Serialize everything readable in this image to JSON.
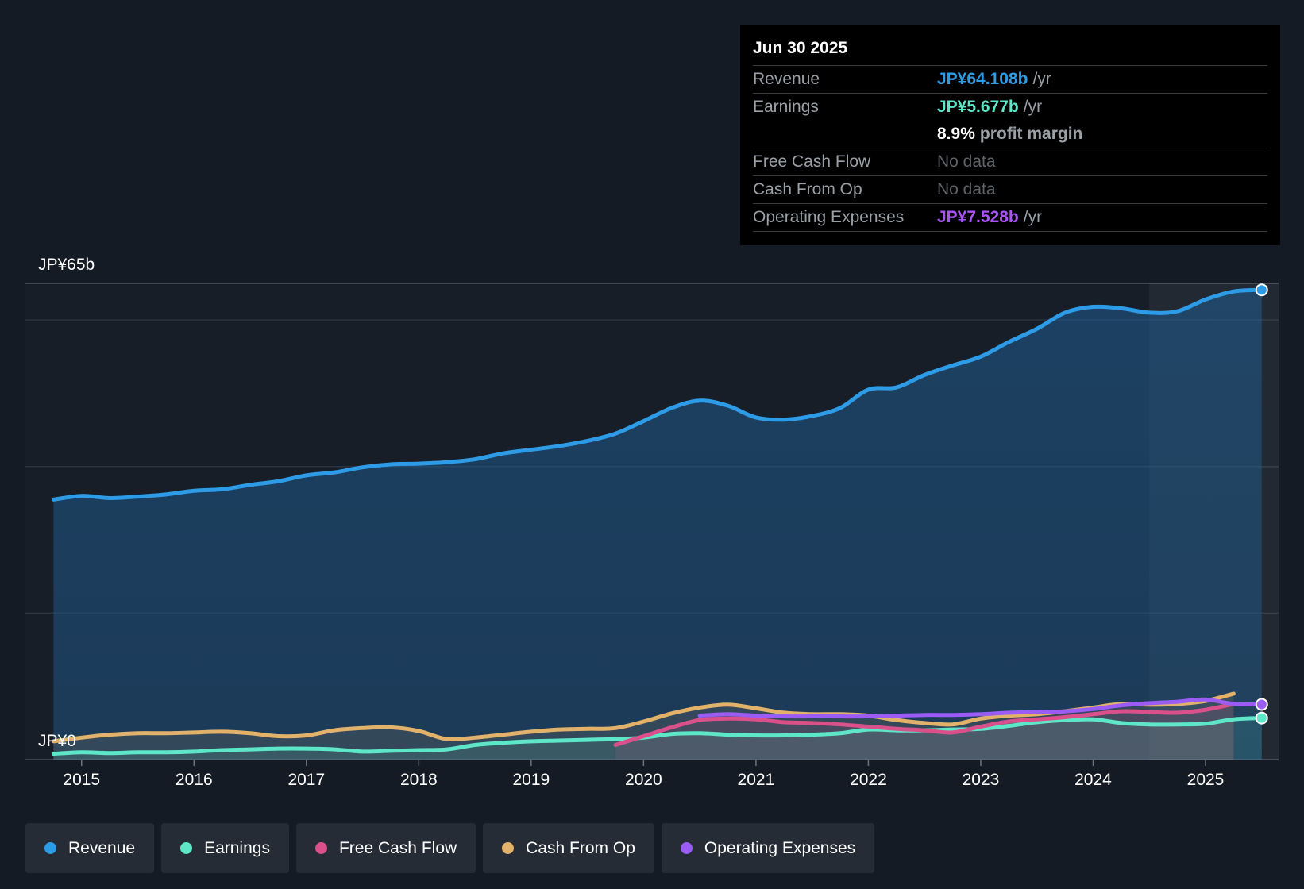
{
  "chart_data": {
    "type": "line",
    "ylim": [
      0,
      65
    ],
    "y_axis_labels": {
      "top": "JP¥65b",
      "bottom": "JP¥0"
    },
    "x_ticks": [
      "2015",
      "2016",
      "2017",
      "2018",
      "2019",
      "2020",
      "2021",
      "2022",
      "2023",
      "2024",
      "2025"
    ],
    "x_range": [
      2014.5,
      2025.65
    ],
    "forecast_start": 2024.5,
    "series": [
      {
        "name": "Revenue",
        "color": "#2d9be6",
        "fill": true,
        "points": [
          [
            2014.75,
            35.5
          ],
          [
            2015.0,
            36.0
          ],
          [
            2015.25,
            35.7
          ],
          [
            2015.5,
            35.9
          ],
          [
            2015.75,
            36.2
          ],
          [
            2016.0,
            36.7
          ],
          [
            2016.25,
            36.9
          ],
          [
            2016.5,
            37.5
          ],
          [
            2016.75,
            38.0
          ],
          [
            2017.0,
            38.8
          ],
          [
            2017.25,
            39.2
          ],
          [
            2017.5,
            39.9
          ],
          [
            2017.75,
            40.3
          ],
          [
            2018.0,
            40.4
          ],
          [
            2018.25,
            40.6
          ],
          [
            2018.5,
            41.0
          ],
          [
            2018.75,
            41.8
          ],
          [
            2019.0,
            42.3
          ],
          [
            2019.25,
            42.8
          ],
          [
            2019.5,
            43.5
          ],
          [
            2019.75,
            44.5
          ],
          [
            2020.0,
            46.2
          ],
          [
            2020.25,
            48.0
          ],
          [
            2020.5,
            49.0
          ],
          [
            2020.75,
            48.3
          ],
          [
            2021.0,
            46.7
          ],
          [
            2021.25,
            46.4
          ],
          [
            2021.5,
            46.9
          ],
          [
            2021.75,
            48.0
          ],
          [
            2022.0,
            50.5
          ],
          [
            2022.25,
            50.8
          ],
          [
            2022.5,
            52.5
          ],
          [
            2022.75,
            53.8
          ],
          [
            2023.0,
            55.0
          ],
          [
            2023.25,
            57.0
          ],
          [
            2023.5,
            58.8
          ],
          [
            2023.75,
            61.0
          ],
          [
            2024.0,
            61.8
          ],
          [
            2024.25,
            61.6
          ],
          [
            2024.5,
            61.0
          ],
          [
            2024.75,
            61.2
          ],
          [
            2025.0,
            62.8
          ],
          [
            2025.25,
            63.9
          ],
          [
            2025.5,
            64.108
          ]
        ]
      },
      {
        "name": "Earnings",
        "color": "#5de6c8",
        "fill": true,
        "points": [
          [
            2014.75,
            0.8
          ],
          [
            2015.0,
            1.0
          ],
          [
            2015.25,
            0.9
          ],
          [
            2015.5,
            1.0
          ],
          [
            2015.75,
            1.0
          ],
          [
            2016.0,
            1.1
          ],
          [
            2016.25,
            1.3
          ],
          [
            2016.5,
            1.4
          ],
          [
            2016.75,
            1.5
          ],
          [
            2017.0,
            1.5
          ],
          [
            2017.25,
            1.4
          ],
          [
            2017.5,
            1.1
          ],
          [
            2017.75,
            1.2
          ],
          [
            2018.0,
            1.3
          ],
          [
            2018.25,
            1.4
          ],
          [
            2018.5,
            2.0
          ],
          [
            2018.75,
            2.3
          ],
          [
            2019.0,
            2.5
          ],
          [
            2019.25,
            2.6
          ],
          [
            2019.5,
            2.7
          ],
          [
            2019.75,
            2.8
          ],
          [
            2020.0,
            3.0
          ],
          [
            2020.25,
            3.5
          ],
          [
            2020.5,
            3.6
          ],
          [
            2020.75,
            3.4
          ],
          [
            2021.0,
            3.3
          ],
          [
            2021.25,
            3.3
          ],
          [
            2021.5,
            3.4
          ],
          [
            2021.75,
            3.6
          ],
          [
            2022.0,
            4.1
          ],
          [
            2022.25,
            4.0
          ],
          [
            2022.5,
            4.0
          ],
          [
            2022.75,
            4.1
          ],
          [
            2023.0,
            4.2
          ],
          [
            2023.25,
            4.6
          ],
          [
            2023.5,
            5.1
          ],
          [
            2023.75,
            5.4
          ],
          [
            2024.0,
            5.5
          ],
          [
            2024.25,
            5.0
          ],
          [
            2024.5,
            4.8
          ],
          [
            2024.75,
            4.8
          ],
          [
            2025.0,
            4.9
          ],
          [
            2025.25,
            5.5
          ],
          [
            2025.5,
            5.677
          ]
        ]
      },
      {
        "name": "Free Cash Flow",
        "color": "#d9508a",
        "fill": true,
        "points": [
          [
            2019.75,
            2.0
          ],
          [
            2020.0,
            3.2
          ],
          [
            2020.25,
            4.4
          ],
          [
            2020.5,
            5.4
          ],
          [
            2020.75,
            5.6
          ],
          [
            2021.0,
            5.5
          ],
          [
            2021.25,
            5.1
          ],
          [
            2021.5,
            5.0
          ],
          [
            2021.75,
            4.8
          ],
          [
            2022.0,
            4.5
          ],
          [
            2022.25,
            4.2
          ],
          [
            2022.5,
            4.0
          ],
          [
            2022.75,
            3.7
          ],
          [
            2023.0,
            4.5
          ],
          [
            2023.25,
            5.2
          ],
          [
            2023.5,
            5.5
          ],
          [
            2023.75,
            5.8
          ],
          [
            2024.0,
            6.2
          ],
          [
            2024.25,
            6.6
          ],
          [
            2024.5,
            6.5
          ],
          [
            2024.75,
            6.4
          ],
          [
            2025.0,
            6.8
          ],
          [
            2025.25,
            7.6
          ]
        ]
      },
      {
        "name": "Cash From Op",
        "color": "#e3b26a",
        "fill": true,
        "points": [
          [
            2014.75,
            2.5
          ],
          [
            2015.0,
            3.0
          ],
          [
            2015.25,
            3.4
          ],
          [
            2015.5,
            3.6
          ],
          [
            2015.75,
            3.6
          ],
          [
            2016.0,
            3.7
          ],
          [
            2016.25,
            3.8
          ],
          [
            2016.5,
            3.6
          ],
          [
            2016.75,
            3.2
          ],
          [
            2017.0,
            3.3
          ],
          [
            2017.25,
            4.0
          ],
          [
            2017.5,
            4.3
          ],
          [
            2017.75,
            4.4
          ],
          [
            2018.0,
            3.9
          ],
          [
            2018.25,
            2.8
          ],
          [
            2018.5,
            3.0
          ],
          [
            2018.75,
            3.4
          ],
          [
            2019.0,
            3.8
          ],
          [
            2019.25,
            4.1
          ],
          [
            2019.5,
            4.2
          ],
          [
            2019.75,
            4.3
          ],
          [
            2020.0,
            5.2
          ],
          [
            2020.25,
            6.3
          ],
          [
            2020.5,
            7.1
          ],
          [
            2020.75,
            7.5
          ],
          [
            2021.0,
            7.0
          ],
          [
            2021.25,
            6.4
          ],
          [
            2021.5,
            6.2
          ],
          [
            2021.75,
            6.2
          ],
          [
            2022.0,
            6.0
          ],
          [
            2022.25,
            5.4
          ],
          [
            2022.5,
            5.0
          ],
          [
            2022.75,
            4.8
          ],
          [
            2023.0,
            5.6
          ],
          [
            2023.25,
            6.0
          ],
          [
            2023.5,
            6.2
          ],
          [
            2023.75,
            6.6
          ],
          [
            2024.0,
            7.1
          ],
          [
            2024.25,
            7.6
          ],
          [
            2024.5,
            7.5
          ],
          [
            2024.75,
            7.6
          ],
          [
            2025.0,
            8.0
          ],
          [
            2025.25,
            9.0
          ]
        ]
      },
      {
        "name": "Operating Expenses",
        "color": "#9b5cf6",
        "fill": false,
        "points": [
          [
            2020.5,
            6.0
          ],
          [
            2020.75,
            6.2
          ],
          [
            2021.0,
            6.0
          ],
          [
            2021.25,
            5.9
          ],
          [
            2021.5,
            5.9
          ],
          [
            2021.75,
            5.9
          ],
          [
            2022.0,
            5.9
          ],
          [
            2022.25,
            6.0
          ],
          [
            2022.5,
            6.1
          ],
          [
            2022.75,
            6.1
          ],
          [
            2023.0,
            6.2
          ],
          [
            2023.25,
            6.4
          ],
          [
            2023.5,
            6.5
          ],
          [
            2023.75,
            6.6
          ],
          [
            2024.0,
            6.9
          ],
          [
            2024.25,
            7.4
          ],
          [
            2024.5,
            7.7
          ],
          [
            2024.75,
            7.9
          ],
          [
            2025.0,
            8.2
          ],
          [
            2025.25,
            7.6
          ],
          [
            2025.5,
            7.528
          ]
        ]
      }
    ]
  },
  "tooltip": {
    "date": "Jun 30 2025",
    "revenue": {
      "label": "Revenue",
      "value": "JP¥64.108b",
      "unit": "/yr"
    },
    "earnings": {
      "label": "Earnings",
      "value": "JP¥5.677b",
      "unit": "/yr"
    },
    "margin": {
      "value": "8.9%",
      "text": "profit margin"
    },
    "fcf": {
      "label": "Free Cash Flow",
      "value": "No data"
    },
    "cfo": {
      "label": "Cash From Op",
      "value": "No data"
    },
    "opex": {
      "label": "Operating Expenses",
      "value": "JP¥7.528b",
      "unit": "/yr"
    }
  },
  "legend": [
    {
      "key": "revenue",
      "label": "Revenue",
      "color": "#2d9be6"
    },
    {
      "key": "earnings",
      "label": "Earnings",
      "color": "#5de6c8"
    },
    {
      "key": "fcf",
      "label": "Free Cash Flow",
      "color": "#d9508a"
    },
    {
      "key": "cfo",
      "label": "Cash From Op",
      "color": "#e3b26a"
    },
    {
      "key": "opex",
      "label": "Operating Expenses",
      "color": "#9b5cf6"
    }
  ]
}
